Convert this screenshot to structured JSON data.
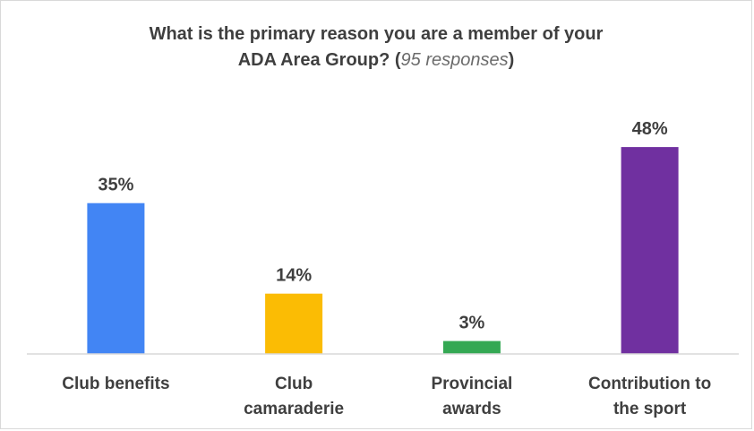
{
  "title": {
    "main": "What is the primary reason you are a member of your",
    "line2_prefix": "ADA Area Group? (",
    "note": "95 responses",
    "suffix": ")"
  },
  "chart_data": {
    "type": "bar",
    "title": "What is the primary reason you are a member of your ADA Area Group? (95 responses)",
    "categories": [
      "Club benefits",
      "Club camaraderie",
      "Provincial awards",
      "Contribution to the sport"
    ],
    "category_lines": [
      [
        "Club benefits"
      ],
      [
        "Club",
        "camaraderie"
      ],
      [
        "Provincial",
        "awards"
      ],
      [
        "Contribution to",
        "the sport"
      ]
    ],
    "values": [
      35,
      14,
      3,
      48
    ],
    "value_labels": [
      "35%",
      "14%",
      "3%",
      "48%"
    ],
    "colors": [
      "#4285f4",
      "#fbbc04",
      "#34a853",
      "#7030a0"
    ],
    "ylim": [
      0,
      50
    ],
    "grid": false,
    "legend": "none",
    "xlabel": "",
    "ylabel": ""
  }
}
